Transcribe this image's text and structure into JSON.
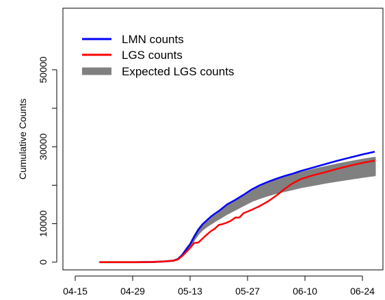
{
  "chart_data": {
    "type": "line",
    "ylabel": "Cumulative Counts",
    "xlabel": "",
    "title": "",
    "x_ticks": [
      "04-15",
      "04-29",
      "05-13",
      "05-27",
      "06-10",
      "06-24"
    ],
    "y_ticks": [
      "0",
      "10000",
      "30000",
      "50000"
    ],
    "y_tick_values": [
      0,
      10000,
      30000,
      50000
    ],
    "xlim": [
      "04-12",
      "06-29"
    ],
    "ylim": [
      -2000,
      66000
    ],
    "legend_position": "top-left",
    "grid": false,
    "series": [
      {
        "name": "LMN counts",
        "color": "#0000ff",
        "kind": "line",
        "x": [
          "04-21",
          "04-25",
          "04-30",
          "05-04",
          "05-07",
          "05-09",
          "05-10",
          "05-11",
          "05-12",
          "05-13",
          "05-14",
          "05-15",
          "05-16",
          "05-17",
          "05-18",
          "05-19",
          "05-20",
          "05-22",
          "05-24",
          "05-26",
          "05-28",
          "05-30",
          "06-01",
          "06-03",
          "06-05",
          "06-07",
          "06-09",
          "06-12",
          "06-15",
          "06-18",
          "06-21",
          "06-24",
          "06-27"
        ],
        "values": [
          0,
          0,
          0,
          50,
          200,
          400,
          800,
          1800,
          3200,
          4600,
          6600,
          8400,
          9800,
          10800,
          11800,
          12600,
          13300,
          15000,
          16200,
          17500,
          18900,
          20000,
          20900,
          21700,
          22400,
          23000,
          23700,
          24600,
          25500,
          26400,
          27200,
          28000,
          28700
        ]
      },
      {
        "name": "LGS counts",
        "color": "#ff0000",
        "kind": "line",
        "x": [
          "04-21",
          "04-25",
          "04-30",
          "05-04",
          "05-07",
          "05-09",
          "05-10",
          "05-11",
          "05-12",
          "05-13",
          "05-14",
          "05-15",
          "05-16",
          "05-17",
          "05-18",
          "05-19",
          "05-20",
          "05-21",
          "05-22",
          "05-23",
          "05-24",
          "05-25",
          "05-26",
          "05-28",
          "05-30",
          "06-01",
          "06-03",
          "06-05",
          "06-07",
          "06-09",
          "06-12",
          "06-15",
          "06-18",
          "06-21",
          "06-24",
          "06-27"
        ],
        "values": [
          0,
          0,
          0,
          50,
          200,
          400,
          700,
          1500,
          2600,
          3700,
          5000,
          5100,
          6100,
          7100,
          8000,
          8700,
          9700,
          9900,
          10300,
          10800,
          11600,
          11600,
          12700,
          13600,
          14600,
          15800,
          17300,
          19000,
          20500,
          21600,
          22600,
          23400,
          24300,
          25100,
          25800,
          26400
        ]
      },
      {
        "name": "Expected LGS counts",
        "color": "#808080",
        "kind": "band",
        "x": [
          "04-21",
          "04-25",
          "04-30",
          "05-04",
          "05-07",
          "05-09",
          "05-10",
          "05-11",
          "05-12",
          "05-13",
          "05-14",
          "05-15",
          "05-16",
          "05-17",
          "05-18",
          "05-19",
          "05-20",
          "05-22",
          "05-24",
          "05-26",
          "05-28",
          "05-30",
          "06-01",
          "06-03",
          "06-05",
          "06-07",
          "06-09",
          "06-12",
          "06-15",
          "06-18",
          "06-21",
          "06-24",
          "06-27"
        ],
        "lower": [
          0,
          0,
          0,
          50,
          200,
          400,
          750,
          1600,
          2900,
          4100,
          5900,
          7400,
          8500,
          9300,
          10000,
          10700,
          11300,
          12600,
          13700,
          14800,
          15900,
          16700,
          17400,
          18000,
          18500,
          19000,
          19500,
          20100,
          20700,
          21200,
          21700,
          22200,
          22600
        ],
        "upper": [
          0,
          0,
          0,
          50,
          200,
          400,
          800,
          1800,
          3300,
          4700,
          6700,
          8500,
          9800,
          10700,
          11600,
          12400,
          13200,
          14700,
          16000,
          17300,
          18600,
          19700,
          20600,
          21300,
          22000,
          22600,
          23200,
          24000,
          24700,
          25400,
          26000,
          26600,
          27100
        ]
      }
    ]
  }
}
